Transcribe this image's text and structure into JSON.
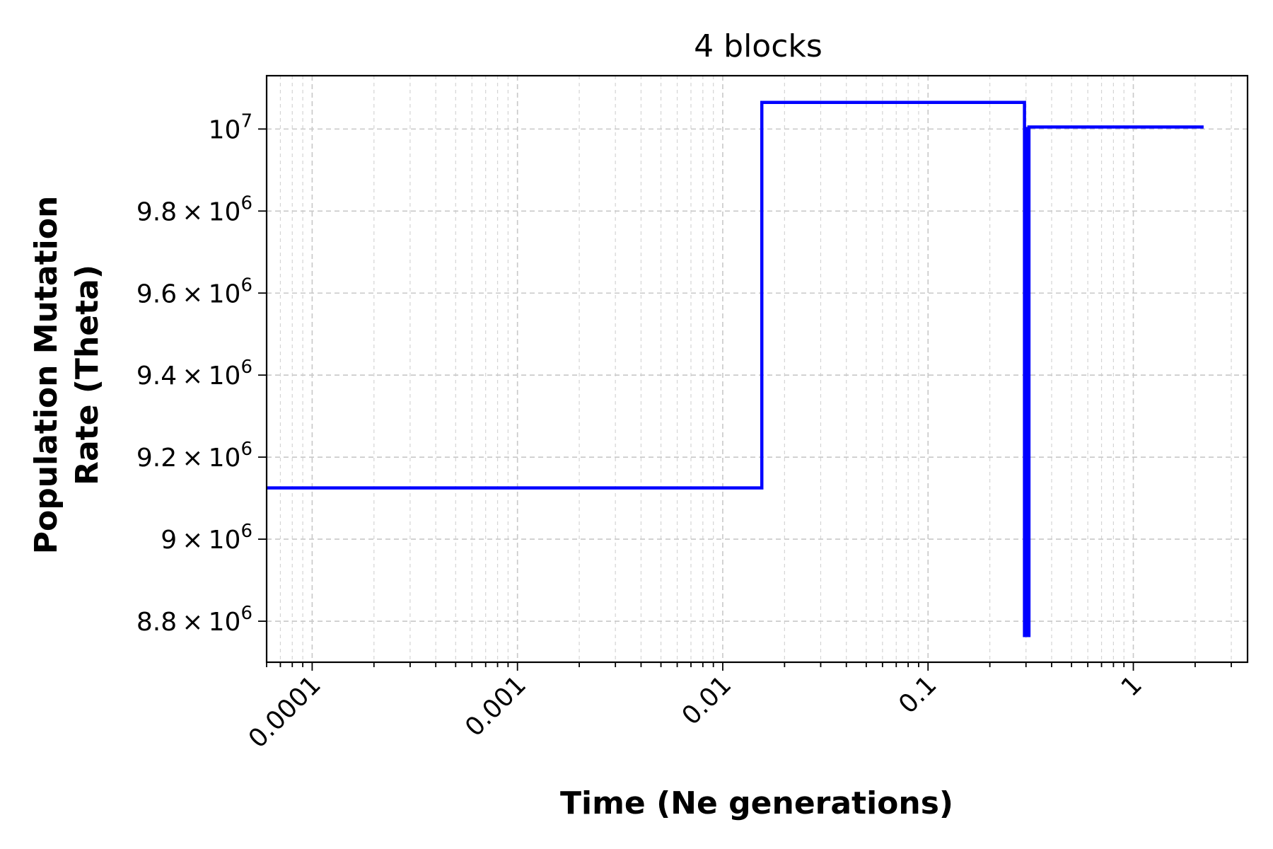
{
  "chart_data": {
    "type": "line",
    "title": "4 blocks",
    "xlabel": "Time (Ne generations)",
    "ylabel_line1": "Population Mutation",
    "ylabel_line2": "Rate (Theta)",
    "xscale": "log",
    "xlim": [
      6e-05,
      3.6
    ],
    "ylim": [
      8700000.0,
      10130000.0
    ],
    "grid": true,
    "color": "#0000ff",
    "x_ticks": [
      {
        "value": 0.0001,
        "label": "0.0001"
      },
      {
        "value": 0.001,
        "label": "0.001"
      },
      {
        "value": 0.01,
        "label": "0.01"
      },
      {
        "value": 0.1,
        "label": "0.1"
      },
      {
        "value": 1,
        "label": "1"
      }
    ],
    "y_ticks": [
      {
        "value": 8800000,
        "mant": "8.8",
        "exp": "6"
      },
      {
        "value": 9000000,
        "mant": "9",
        "exp": "6"
      },
      {
        "value": 9200000,
        "mant": "9.2",
        "exp": "6"
      },
      {
        "value": 9400000,
        "mant": "9.4",
        "exp": "6"
      },
      {
        "value": 9600000,
        "mant": "9.6",
        "exp": "6"
      },
      {
        "value": 9800000,
        "mant": "9.8",
        "exp": "6"
      },
      {
        "value": 10000000,
        "mant": "",
        "exp": "7"
      }
    ],
    "series": [
      {
        "x": [
          6e-05,
          0.0155,
          0.0155,
          0.295,
          0.295,
          0.31,
          0.31,
          2.2
        ],
        "y": [
          9125000,
          9125000,
          10065000,
          10065000,
          8765000,
          8765000,
          10005000,
          10005000
        ]
      }
    ]
  }
}
